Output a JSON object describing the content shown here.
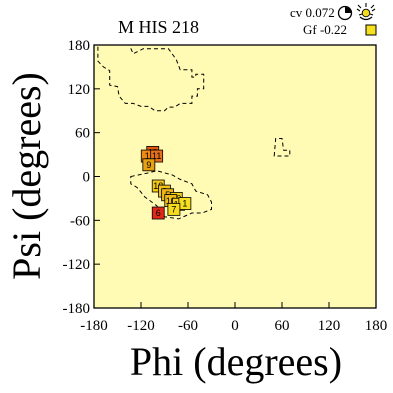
{
  "chart_data": {
    "type": "scatter",
    "title": "M HIS 218",
    "xlabel": "Phi (degrees)",
    "ylabel": "Psi (degrees)",
    "xlim": [
      -180,
      180
    ],
    "ylim": [
      -180,
      180
    ],
    "xticks": [
      "-180",
      "-120",
      "-60",
      "0",
      "60",
      "120",
      "180"
    ],
    "yticks": [
      "180",
      "120",
      "60",
      "0",
      "-60",
      "-120",
      "-180"
    ],
    "info": {
      "cv_label": "cv 0.072",
      "gf_label": "Gf -0.22"
    },
    "colors": {
      "background": "#fffbb4",
      "gf_box": "#f6e020",
      "outline": "#000000"
    },
    "regions": [
      {
        "name": "beta",
        "points": [
          [
            -175,
            180
          ],
          [
            -135,
            180
          ],
          [
            -130,
            168
          ],
          [
            -117,
            175
          ],
          [
            -85,
            175
          ],
          [
            -75,
            160
          ],
          [
            -70,
            146
          ],
          [
            -55,
            146
          ],
          [
            -55,
            136
          ],
          [
            -50,
            136
          ],
          [
            -50,
            140
          ],
          [
            -40,
            140
          ],
          [
            -40,
            120
          ],
          [
            -48,
            120
          ],
          [
            -48,
            110
          ],
          [
            -55,
            110
          ],
          [
            -55,
            100
          ],
          [
            -70,
            100
          ],
          [
            -77,
            95
          ],
          [
            -85,
            95
          ],
          [
            -90,
            90
          ],
          [
            -102,
            90
          ],
          [
            -110,
            96
          ],
          [
            -120,
            96
          ],
          [
            -130,
            100
          ],
          [
            -140,
            100
          ],
          [
            -148,
            110
          ],
          [
            -150,
            123
          ],
          [
            -160,
            125
          ],
          [
            -160,
            145
          ],
          [
            -168,
            150
          ],
          [
            -175,
            158
          ]
        ]
      },
      {
        "name": "alpha",
        "points": [
          [
            -133,
            0
          ],
          [
            -110,
            5
          ],
          [
            -100,
            8
          ],
          [
            -80,
            2
          ],
          [
            -70,
            -4
          ],
          [
            -55,
            -10
          ],
          [
            -50,
            -20
          ],
          [
            -35,
            -25
          ],
          [
            -30,
            -35
          ],
          [
            -30,
            -45
          ],
          [
            -42,
            -50
          ],
          [
            -55,
            -50
          ],
          [
            -72,
            -58
          ],
          [
            -90,
            -55
          ],
          [
            -100,
            -40
          ],
          [
            -115,
            -28
          ],
          [
            -125,
            -15
          ],
          [
            -133,
            -10
          ]
        ]
      },
      {
        "name": "left-alpha",
        "points": [
          [
            50,
            28
          ],
          [
            52,
            52
          ],
          [
            60,
            52
          ],
          [
            62,
            36
          ],
          [
            70,
            36
          ],
          [
            70,
            28
          ]
        ]
      }
    ],
    "points": [
      {
        "label": "19",
        "phi": -105,
        "psi": 33,
        "color": "#e05a10"
      },
      {
        "label": "1",
        "phi": -112,
        "psi": 28,
        "color": "#ee8a10"
      },
      {
        "label": "11",
        "phi": -100,
        "psi": 28,
        "color": "#e6701c"
      },
      {
        "label": "9",
        "phi": -110,
        "psi": 16,
        "color": "#e6a010"
      },
      {
        "label": "18",
        "phi": -98,
        "psi": -13,
        "color": "#f4ca18"
      },
      {
        "label": "2",
        "phi": -90,
        "psi": -20,
        "color": "#f2c418"
      },
      {
        "label": "5",
        "phi": -86,
        "psi": -25,
        "color": "#ecb618"
      },
      {
        "label": "20",
        "phi": -75,
        "psi": -30,
        "color": "#f6d41c"
      },
      {
        "label": "10",
        "phi": -82,
        "psi": -33,
        "color": "#f0be18"
      },
      {
        "label": "17",
        "phi": -72,
        "psi": -38,
        "color": "#f6d41c"
      },
      {
        "label": "1",
        "phi": -64,
        "psi": -37,
        "color": "#f6e020"
      },
      {
        "label": "7",
        "phi": -78,
        "psi": -45,
        "color": "#f6dc1c"
      },
      {
        "label": "6",
        "phi": -98,
        "psi": -50,
        "color": "#e02818"
      }
    ]
  }
}
